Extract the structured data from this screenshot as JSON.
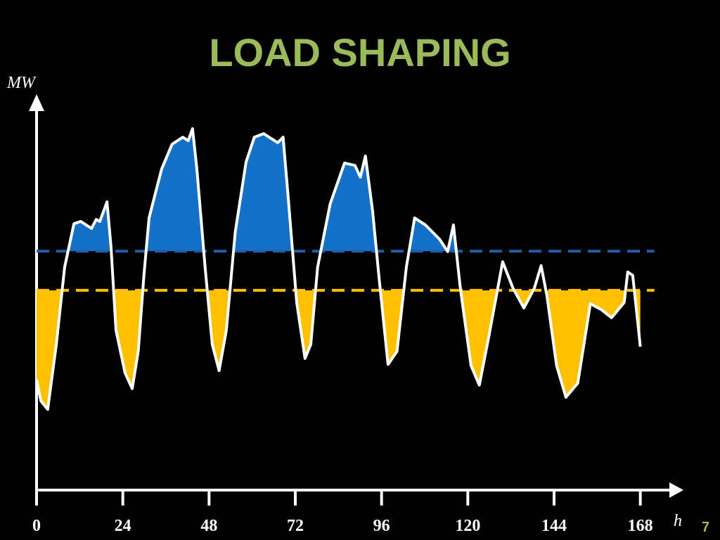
{
  "chart_data": {
    "type": "line",
    "title": "LOAD SHAPING",
    "y_label": "MW",
    "x_label": "h",
    "x": [
      0,
      1.2,
      3.1,
      5.5,
      7.8,
      10.4,
      12.3,
      15.3,
      16.6,
      17.6,
      19.6,
      20.7,
      22.1,
      24.6,
      26.6,
      28.3,
      29.9,
      31.3,
      34.8,
      37.7,
      40.7,
      42.2,
      43.4,
      44.6,
      46.9,
      48.9,
      50.8,
      52.8,
      55.3,
      58.3,
      60.6,
      63.2,
      67.1,
      68.6,
      70,
      72.4,
      74.7,
      76.3,
      78.2,
      81.7,
      85.7,
      88.6,
      90.1,
      91.5,
      93.5,
      95.4,
      97.8,
      100.3,
      102.9,
      105.2,
      108.2,
      112.1,
      114.4,
      116,
      117.9,
      120.9,
      123.2,
      125.8,
      129.7,
      132.6,
      135.6,
      138.5,
      140.4,
      142,
      144.7,
      147.3,
      150.6,
      154.1,
      157.1,
      160,
      163.5,
      164.5,
      165.9,
      168
    ],
    "series": [
      {
        "color": "#ffffff",
        "values": [
          28.2,
          22.8,
          20.6,
          37.2,
          56.9,
          68,
          68.6,
          66.8,
          69.1,
          68.6,
          73.6,
          62.3,
          40.8,
          30,
          25.9,
          35.4,
          55.1,
          69.5,
          82,
          88.3,
          90.1,
          89.2,
          92.3,
          82,
          56.9,
          37.2,
          30.5,
          40.8,
          65.9,
          83.8,
          90.1,
          91,
          88.7,
          90.1,
          74.9,
          47.9,
          33.6,
          37.2,
          56.9,
          73.1,
          83.5,
          82.9,
          79.9,
          85.3,
          71.3,
          53.3,
          32.1,
          35.4,
          56.9,
          69.5,
          67.7,
          64.1,
          60.9,
          67.7,
          51.7,
          31.8,
          26.8,
          39,
          58.3,
          51.5,
          46.5,
          51.5,
          57.3,
          49.7,
          31.8,
          23.7,
          27.3,
          47.6,
          46.1,
          44,
          47.9,
          55.7,
          54.8,
          36.6
        ]
      }
    ],
    "reference_lines": [
      {
        "value": 61,
        "color": "#1f5fa8",
        "fill": "#1570c8",
        "side": "above"
      },
      {
        "value": 51,
        "color": "#ffc000",
        "fill": "#ffc000",
        "side": "below"
      }
    ],
    "xlim": [
      0,
      180
    ],
    "ylim": [
      0,
      100
    ],
    "xticks": [
      0,
      24,
      48,
      72,
      96,
      120,
      144,
      168
    ]
  },
  "page_number": "7"
}
